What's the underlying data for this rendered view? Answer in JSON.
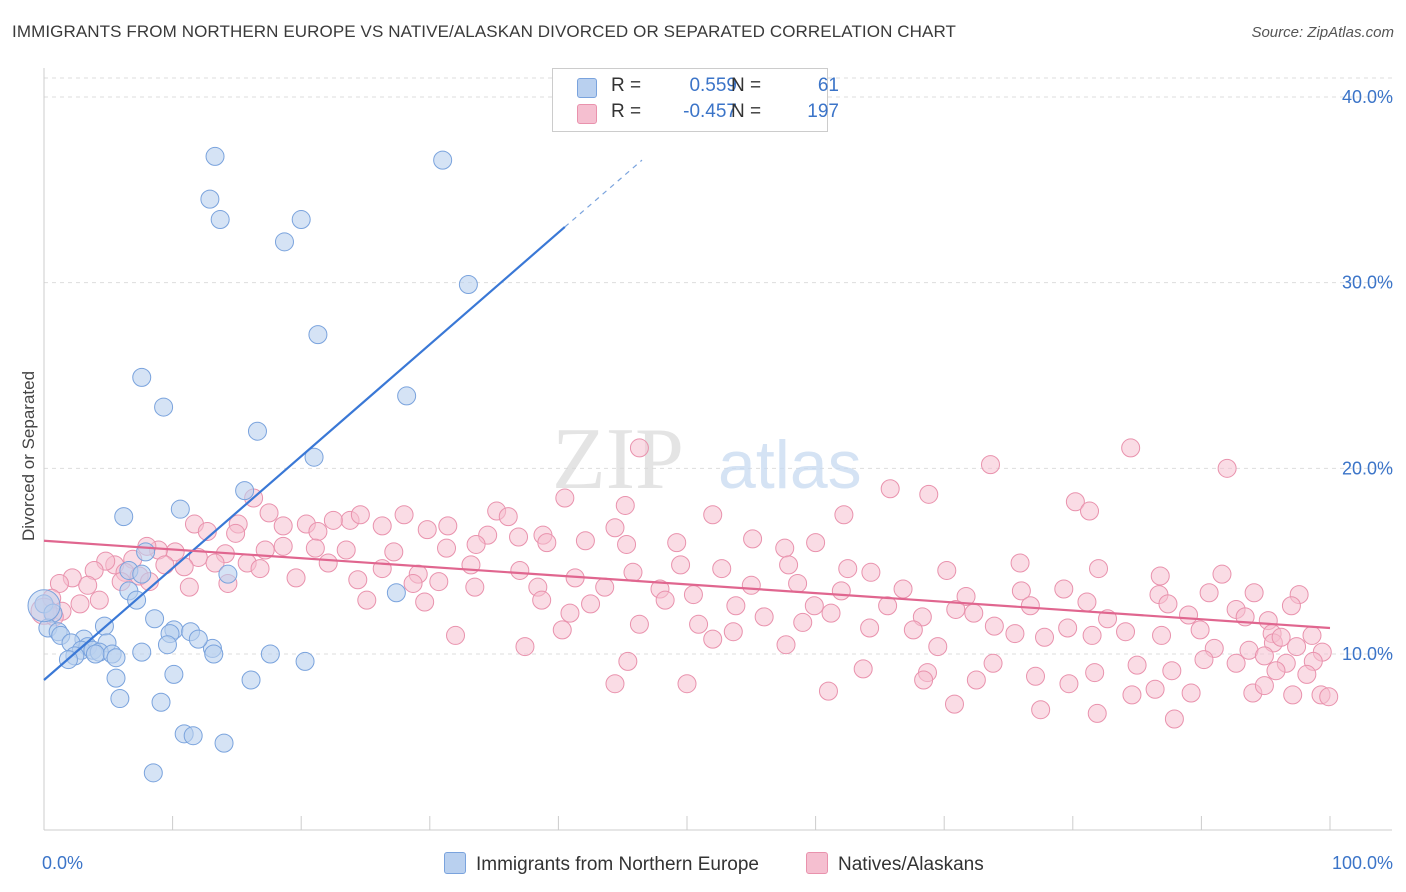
{
  "header": {
    "title": "IMMIGRANTS FROM NORTHERN EUROPE VS NATIVE/ALASKAN DIVORCED OR SEPARATED CORRELATION CHART",
    "source": "Source: ZipAtlas.com"
  },
  "legend": {
    "rows": [
      {
        "r_label": "R =",
        "r_value": "0.559",
        "n_label": "N =",
        "n_value": "61"
      },
      {
        "r_label": "R =",
        "r_value": "-0.457",
        "n_label": "N =",
        "n_value": "197"
      }
    ],
    "bottom": [
      "Immigrants from Northern Europe",
      "Natives/Alaskans"
    ]
  },
  "watermark": {
    "zip": "ZIP",
    "atlas": "atlas"
  },
  "colors": {
    "blue": "#3a78d6",
    "blue_fill": "#b9d0ef",
    "blue_stroke": "#7aa3dd",
    "pink": "#e0668f",
    "pink_fill": "#f5bfd0",
    "pink_stroke": "#e992ad",
    "axis_text": "#3b74c8",
    "grid": "#dddddd"
  },
  "chart_data": {
    "type": "scatter",
    "xlabel": "",
    "ylabel": "Divorced or Separated",
    "xlim": [
      0,
      100
    ],
    "ylim": [
      0,
      42
    ],
    "x_tick_labels": [
      "0.0%",
      "100.0%"
    ],
    "y_ticks": [
      10,
      20,
      30,
      40
    ],
    "y_tick_labels": [
      "10.0%",
      "20.0%",
      "30.0%",
      "40.0%"
    ],
    "grid": true,
    "series": [
      {
        "name": "Immigrants from Northern Europe",
        "color": "#3a78d6",
        "trend": {
          "x0": 0,
          "y0": 8.6,
          "x1": 40.5,
          "y1": 33.0,
          "dash_to_x": 46.5,
          "dash_to_y": 36.6
        },
        "points": [
          [
            13.3,
            36.8
          ],
          [
            31.0,
            36.6
          ],
          [
            12.9,
            34.5
          ],
          [
            13.7,
            33.4
          ],
          [
            20.0,
            33.4
          ],
          [
            18.7,
            32.2
          ],
          [
            33.0,
            29.9
          ],
          [
            21.3,
            27.2
          ],
          [
            7.6,
            24.9
          ],
          [
            9.3,
            23.3
          ],
          [
            28.2,
            23.9
          ],
          [
            16.6,
            22.0
          ],
          [
            21.0,
            20.6
          ],
          [
            15.6,
            18.8
          ],
          [
            10.6,
            17.8
          ],
          [
            6.2,
            17.4
          ],
          [
            7.9,
            15.5
          ],
          [
            6.6,
            14.5
          ],
          [
            7.6,
            14.3
          ],
          [
            14.3,
            14.3
          ],
          [
            6.6,
            13.4
          ],
          [
            7.2,
            12.9
          ],
          [
            27.4,
            13.3
          ],
          [
            0.0,
            12.7
          ],
          [
            0.7,
            12.2
          ],
          [
            0.3,
            11.4
          ],
          [
            8.6,
            11.9
          ],
          [
            1.1,
            11.2
          ],
          [
            4.7,
            11.5
          ],
          [
            1.3,
            11.0
          ],
          [
            10.1,
            11.3
          ],
          [
            11.4,
            11.2
          ],
          [
            9.8,
            11.1
          ],
          [
            3.1,
            10.8
          ],
          [
            2.1,
            10.6
          ],
          [
            4.9,
            10.6
          ],
          [
            3.4,
            10.4
          ],
          [
            9.6,
            10.5
          ],
          [
            2.9,
            10.2
          ],
          [
            3.8,
            10.2
          ],
          [
            4.3,
            10.1
          ],
          [
            4.0,
            10.0
          ],
          [
            13.1,
            10.3
          ],
          [
            13.2,
            10.0
          ],
          [
            2.4,
            9.9
          ],
          [
            5.3,
            10.0
          ],
          [
            5.6,
            9.8
          ],
          [
            7.6,
            10.1
          ],
          [
            17.6,
            10.0
          ],
          [
            20.3,
            9.6
          ],
          [
            1.9,
            9.7
          ],
          [
            5.6,
            8.7
          ],
          [
            10.1,
            8.9
          ],
          [
            16.1,
            8.6
          ],
          [
            5.9,
            7.6
          ],
          [
            9.1,
            7.4
          ],
          [
            10.9,
            5.7
          ],
          [
            11.6,
            5.6
          ],
          [
            14.0,
            5.2
          ],
          [
            8.5,
            3.6
          ],
          [
            12.0,
            10.8
          ]
        ]
      },
      {
        "name": "Natives/Alaskans",
        "color": "#e0668f",
        "trend": {
          "x0": 0,
          "y0": 16.1,
          "x1": 100,
          "y1": 11.4
        },
        "points": [
          [
            46.3,
            21.1
          ],
          [
            84.5,
            21.1
          ],
          [
            92.0,
            20.0
          ],
          [
            73.6,
            20.2
          ],
          [
            65.8,
            18.9
          ],
          [
            40.5,
            18.4
          ],
          [
            16.3,
            18.4
          ],
          [
            68.8,
            18.6
          ],
          [
            80.2,
            18.2
          ],
          [
            45.2,
            18.0
          ],
          [
            52.0,
            17.5
          ],
          [
            62.2,
            17.5
          ],
          [
            81.3,
            17.7
          ],
          [
            35.2,
            17.7
          ],
          [
            17.5,
            17.6
          ],
          [
            28.0,
            17.5
          ],
          [
            15.1,
            17.0
          ],
          [
            11.7,
            17.0
          ],
          [
            23.8,
            17.2
          ],
          [
            24.6,
            17.5
          ],
          [
            36.1,
            17.4
          ],
          [
            20.4,
            17.0
          ],
          [
            22.5,
            17.2
          ],
          [
            26.3,
            16.9
          ],
          [
            29.8,
            16.7
          ],
          [
            44.4,
            16.8
          ],
          [
            18.6,
            16.9
          ],
          [
            12.7,
            16.6
          ],
          [
            14.9,
            16.5
          ],
          [
            21.3,
            16.6
          ],
          [
            31.4,
            16.9
          ],
          [
            34.5,
            16.4
          ],
          [
            36.9,
            16.3
          ],
          [
            38.8,
            16.4
          ],
          [
            42.1,
            16.1
          ],
          [
            49.2,
            16.0
          ],
          [
            55.1,
            16.2
          ],
          [
            60.0,
            16.0
          ],
          [
            57.6,
            15.7
          ],
          [
            45.3,
            15.9
          ],
          [
            39.1,
            16.0
          ],
          [
            33.6,
            15.9
          ],
          [
            31.3,
            15.7
          ],
          [
            27.2,
            15.5
          ],
          [
            23.5,
            15.6
          ],
          [
            21.1,
            15.7
          ],
          [
            18.6,
            15.8
          ],
          [
            17.2,
            15.6
          ],
          [
            14.1,
            15.4
          ],
          [
            12.0,
            15.2
          ],
          [
            10.2,
            15.5
          ],
          [
            8.9,
            15.6
          ],
          [
            8.0,
            15.8
          ],
          [
            6.9,
            15.1
          ],
          [
            5.5,
            14.8
          ],
          [
            4.8,
            15.0
          ],
          [
            3.9,
            14.5
          ],
          [
            6.3,
            14.4
          ],
          [
            7.4,
            14.2
          ],
          [
            9.4,
            14.8
          ],
          [
            10.9,
            14.7
          ],
          [
            13.3,
            14.9
          ],
          [
            15.8,
            14.9
          ],
          [
            16.8,
            14.6
          ],
          [
            22.1,
            14.9
          ],
          [
            26.3,
            14.6
          ],
          [
            29.1,
            14.3
          ],
          [
            33.2,
            14.8
          ],
          [
            37.0,
            14.5
          ],
          [
            41.3,
            14.1
          ],
          [
            45.8,
            14.4
          ],
          [
            49.5,
            14.8
          ],
          [
            52.7,
            14.6
          ],
          [
            57.9,
            14.8
          ],
          [
            62.5,
            14.6
          ],
          [
            64.3,
            14.4
          ],
          [
            70.2,
            14.5
          ],
          [
            75.9,
            14.9
          ],
          [
            82.0,
            14.6
          ],
          [
            86.8,
            14.2
          ],
          [
            91.6,
            14.3
          ],
          [
            2.2,
            14.1
          ],
          [
            1.2,
            13.8
          ],
          [
            3.4,
            13.7
          ],
          [
            6.0,
            13.9
          ],
          [
            8.2,
            13.9
          ],
          [
            11.3,
            13.6
          ],
          [
            14.3,
            13.8
          ],
          [
            19.6,
            14.1
          ],
          [
            24.4,
            14.0
          ],
          [
            28.7,
            13.8
          ],
          [
            30.7,
            13.9
          ],
          [
            33.5,
            13.6
          ],
          [
            38.4,
            13.6
          ],
          [
            43.6,
            13.6
          ],
          [
            47.9,
            13.5
          ],
          [
            50.5,
            13.2
          ],
          [
            55.0,
            13.7
          ],
          [
            58.6,
            13.8
          ],
          [
            62.0,
            13.4
          ],
          [
            66.8,
            13.5
          ],
          [
            71.7,
            13.1
          ],
          [
            76.0,
            13.4
          ],
          [
            79.3,
            13.5
          ],
          [
            86.7,
            13.2
          ],
          [
            90.6,
            13.3
          ],
          [
            94.1,
            13.3
          ],
          [
            97.6,
            13.2
          ],
          [
            0.6,
            13.0
          ],
          [
            2.8,
            12.7
          ],
          [
            4.3,
            12.9
          ],
          [
            25.1,
            12.9
          ],
          [
            29.6,
            12.8
          ],
          [
            38.7,
            12.9
          ],
          [
            42.5,
            12.7
          ],
          [
            48.3,
            12.9
          ],
          [
            53.8,
            12.6
          ],
          [
            59.9,
            12.6
          ],
          [
            65.6,
            12.6
          ],
          [
            70.9,
            12.4
          ],
          [
            76.7,
            12.6
          ],
          [
            81.1,
            12.8
          ],
          [
            87.4,
            12.7
          ],
          [
            92.7,
            12.4
          ],
          [
            97.0,
            12.6
          ],
          [
            1.4,
            12.3
          ],
          [
            0.8,
            12.0
          ],
          [
            40.9,
            12.2
          ],
          [
            56.0,
            12.0
          ],
          [
            61.2,
            12.2
          ],
          [
            68.3,
            12.0
          ],
          [
            72.3,
            12.2
          ],
          [
            82.7,
            11.9
          ],
          [
            89.0,
            12.1
          ],
          [
            93.4,
            12.0
          ],
          [
            95.2,
            11.8
          ],
          [
            46.3,
            11.6
          ],
          [
            50.9,
            11.6
          ],
          [
            59.0,
            11.7
          ],
          [
            64.2,
            11.4
          ],
          [
            73.9,
            11.5
          ],
          [
            79.6,
            11.4
          ],
          [
            84.1,
            11.2
          ],
          [
            89.9,
            11.3
          ],
          [
            95.5,
            11.1
          ],
          [
            98.6,
            11.0
          ],
          [
            32.0,
            11.0
          ],
          [
            40.3,
            11.3
          ],
          [
            53.6,
            11.2
          ],
          [
            67.6,
            11.3
          ],
          [
            75.5,
            11.1
          ],
          [
            81.5,
            11.0
          ],
          [
            86.9,
            11.0
          ],
          [
            95.6,
            10.6
          ],
          [
            97.4,
            10.4
          ],
          [
            93.7,
            10.2
          ],
          [
            37.4,
            10.4
          ],
          [
            52.0,
            10.8
          ],
          [
            57.7,
            10.5
          ],
          [
            69.5,
            10.4
          ],
          [
            77.8,
            10.9
          ],
          [
            91.0,
            10.3
          ],
          [
            99.4,
            10.1
          ],
          [
            94.9,
            9.9
          ],
          [
            98.7,
            9.6
          ],
          [
            45.4,
            9.6
          ],
          [
            73.8,
            9.5
          ],
          [
            85.0,
            9.4
          ],
          [
            90.2,
            9.7
          ],
          [
            92.7,
            9.5
          ],
          [
            96.6,
            9.5
          ],
          [
            63.7,
            9.2
          ],
          [
            68.7,
            9.0
          ],
          [
            81.7,
            9.0
          ],
          [
            87.7,
            9.1
          ],
          [
            95.8,
            9.1
          ],
          [
            98.2,
            8.9
          ],
          [
            44.4,
            8.4
          ],
          [
            50.0,
            8.4
          ],
          [
            68.4,
            8.6
          ],
          [
            72.5,
            8.6
          ],
          [
            77.1,
            8.8
          ],
          [
            79.7,
            8.4
          ],
          [
            86.4,
            8.1
          ],
          [
            89.2,
            7.9
          ],
          [
            94.0,
            7.9
          ],
          [
            97.1,
            7.8
          ],
          [
            99.3,
            7.8
          ],
          [
            70.8,
            7.3
          ],
          [
            77.5,
            7.0
          ],
          [
            81.9,
            6.8
          ],
          [
            87.9,
            6.5
          ],
          [
            99.9,
            7.7
          ],
          [
            94.9,
            8.3
          ],
          [
            96.2,
            10.9
          ],
          [
            61.0,
            8.0
          ],
          [
            84.6,
            7.8
          ]
        ]
      }
    ]
  }
}
